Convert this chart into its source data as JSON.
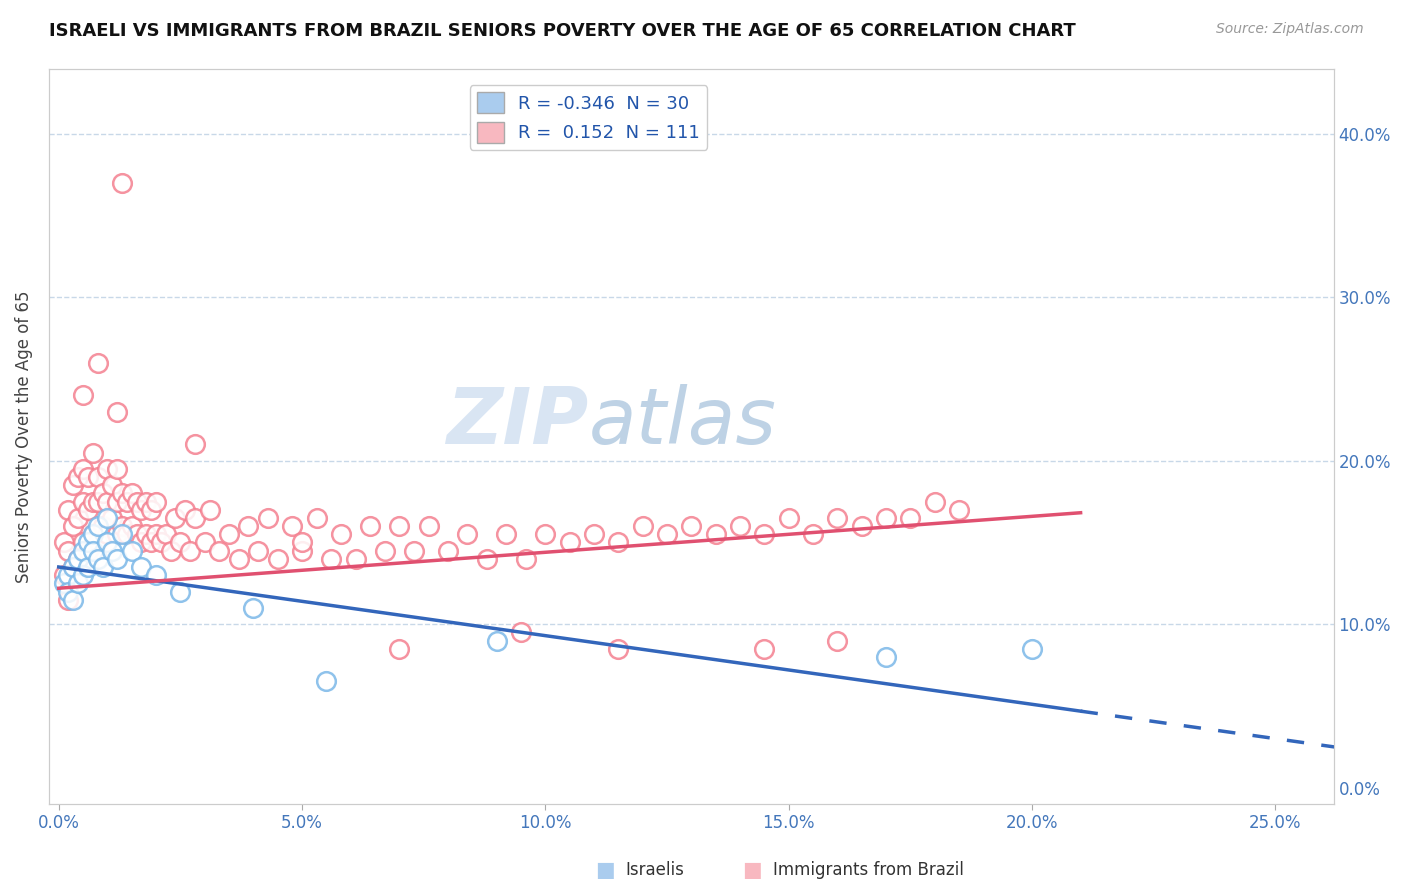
{
  "title": "ISRAELI VS IMMIGRANTS FROM BRAZIL SENIORS POVERTY OVER THE AGE OF 65 CORRELATION CHART",
  "source": "Source: ZipAtlas.com",
  "xlabel_ticks": [
    0.0,
    0.05,
    0.1,
    0.15,
    0.2,
    0.25
  ],
  "ylabel_ticks": [
    0.0,
    0.1,
    0.2,
    0.3,
    0.4
  ],
  "xlim": [
    -0.002,
    0.262
  ],
  "ylim": [
    -0.01,
    0.44
  ],
  "ylabel": "Seniors Poverty Over the Age of 65",
  "legend_r_israel": "R = -0.346",
  "legend_n_israel": "N = 30",
  "legend_r_brazil": "R =  0.152",
  "legend_n_brazil": "N = 111",
  "israel_color": "#7bb8e8",
  "brazil_color": "#f48090",
  "israel_line_color": "#3366bb",
  "brazil_line_color": "#e05070",
  "watermark_ZIP": "ZIP",
  "watermark_atlas": "atlas",
  "grid_color": "#c8d8e8",
  "background_color": "#ffffff",
  "israelis_x": [
    0.001,
    0.002,
    0.002,
    0.003,
    0.003,
    0.004,
    0.004,
    0.005,
    0.005,
    0.006,
    0.006,
    0.007,
    0.007,
    0.008,
    0.008,
    0.009,
    0.01,
    0.01,
    0.011,
    0.012,
    0.013,
    0.015,
    0.017,
    0.02,
    0.025,
    0.04,
    0.055,
    0.09,
    0.17,
    0.2
  ],
  "israelis_y": [
    0.125,
    0.13,
    0.12,
    0.135,
    0.115,
    0.14,
    0.125,
    0.145,
    0.13,
    0.15,
    0.135,
    0.155,
    0.145,
    0.16,
    0.14,
    0.135,
    0.15,
    0.165,
    0.145,
    0.14,
    0.155,
    0.145,
    0.135,
    0.13,
    0.12,
    0.11,
    0.065,
    0.09,
    0.08,
    0.085
  ],
  "brazil_x": [
    0.001,
    0.001,
    0.002,
    0.002,
    0.002,
    0.003,
    0.003,
    0.003,
    0.004,
    0.004,
    0.004,
    0.005,
    0.005,
    0.005,
    0.006,
    0.006,
    0.006,
    0.007,
    0.007,
    0.007,
    0.008,
    0.008,
    0.008,
    0.009,
    0.009,
    0.01,
    0.01,
    0.01,
    0.011,
    0.011,
    0.012,
    0.012,
    0.012,
    0.013,
    0.013,
    0.014,
    0.014,
    0.015,
    0.015,
    0.016,
    0.016,
    0.017,
    0.017,
    0.018,
    0.018,
    0.019,
    0.019,
    0.02,
    0.02,
    0.021,
    0.022,
    0.023,
    0.024,
    0.025,
    0.026,
    0.027,
    0.028,
    0.03,
    0.031,
    0.033,
    0.035,
    0.037,
    0.039,
    0.041,
    0.043,
    0.045,
    0.048,
    0.05,
    0.053,
    0.056,
    0.058,
    0.061,
    0.064,
    0.067,
    0.07,
    0.073,
    0.076,
    0.08,
    0.084,
    0.088,
    0.092,
    0.096,
    0.1,
    0.105,
    0.11,
    0.115,
    0.12,
    0.125,
    0.13,
    0.135,
    0.14,
    0.145,
    0.15,
    0.155,
    0.16,
    0.165,
    0.17,
    0.175,
    0.18,
    0.185,
    0.013,
    0.005,
    0.008,
    0.012,
    0.028,
    0.05,
    0.07,
    0.095,
    0.115,
    0.145,
    0.16
  ],
  "brazil_y": [
    0.13,
    0.15,
    0.115,
    0.145,
    0.17,
    0.135,
    0.16,
    0.185,
    0.14,
    0.165,
    0.19,
    0.15,
    0.175,
    0.195,
    0.145,
    0.17,
    0.19,
    0.155,
    0.175,
    0.205,
    0.15,
    0.175,
    0.19,
    0.16,
    0.18,
    0.155,
    0.175,
    0.195,
    0.165,
    0.185,
    0.155,
    0.175,
    0.195,
    0.16,
    0.18,
    0.155,
    0.175,
    0.16,
    0.18,
    0.155,
    0.175,
    0.15,
    0.17,
    0.155,
    0.175,
    0.15,
    0.17,
    0.155,
    0.175,
    0.15,
    0.155,
    0.145,
    0.165,
    0.15,
    0.17,
    0.145,
    0.165,
    0.15,
    0.17,
    0.145,
    0.155,
    0.14,
    0.16,
    0.145,
    0.165,
    0.14,
    0.16,
    0.145,
    0.165,
    0.14,
    0.155,
    0.14,
    0.16,
    0.145,
    0.16,
    0.145,
    0.16,
    0.145,
    0.155,
    0.14,
    0.155,
    0.14,
    0.155,
    0.15,
    0.155,
    0.15,
    0.16,
    0.155,
    0.16,
    0.155,
    0.16,
    0.155,
    0.165,
    0.155,
    0.165,
    0.16,
    0.165,
    0.165,
    0.175,
    0.17,
    0.37,
    0.24,
    0.26,
    0.23,
    0.21,
    0.15,
    0.085,
    0.095,
    0.085,
    0.085,
    0.09
  ]
}
